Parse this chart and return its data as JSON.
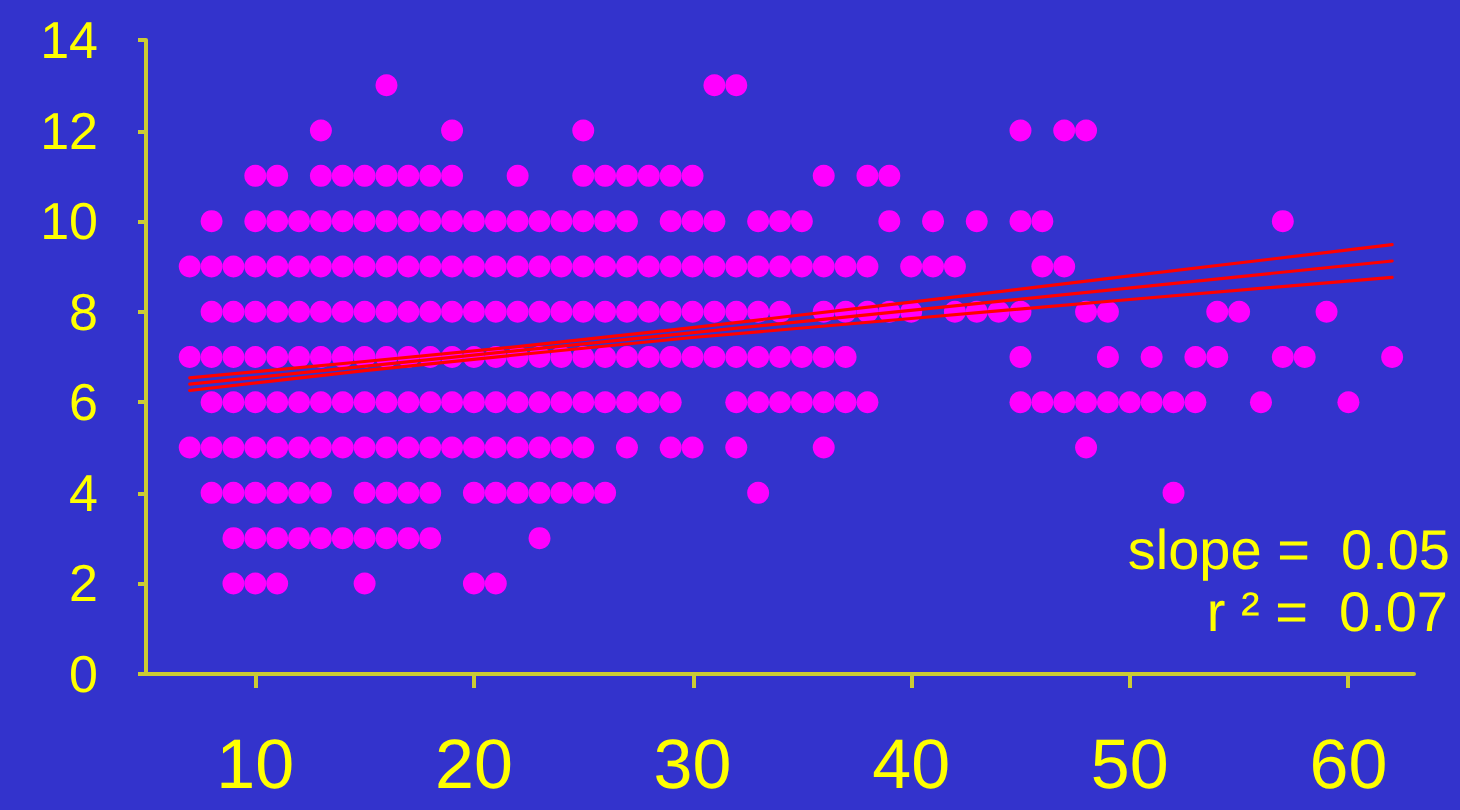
{
  "chart_data": {
    "type": "scatter",
    "xlim": [
      5,
      63
    ],
    "xticks": [
      10,
      20,
      30,
      40,
      50,
      60
    ],
    "ylim": [
      0,
      14
    ],
    "yticks": [
      0,
      2,
      4,
      6,
      8,
      10,
      12,
      14
    ],
    "marker": "circle",
    "annotations": [
      "slope =  0.05",
      "r ² =  0.07"
    ],
    "series": [
      {
        "color": "#ff00ff",
        "x": [
          16,
          31,
          32,
          13,
          19,
          25,
          45,
          47,
          48,
          10,
          11,
          13,
          14,
          15,
          16,
          17,
          18,
          19,
          22,
          25,
          26,
          27,
          28,
          29,
          30,
          36,
          38,
          39,
          8,
          10,
          11,
          12,
          13,
          14,
          15,
          16,
          17,
          18,
          19,
          20,
          21,
          22,
          23,
          24,
          25,
          26,
          27,
          29,
          30,
          31,
          33,
          34,
          35,
          39,
          41,
          43,
          45,
          46,
          57,
          7,
          8,
          9,
          10,
          11,
          12,
          13,
          14,
          15,
          16,
          17,
          18,
          19,
          20,
          21,
          22,
          23,
          24,
          25,
          26,
          27,
          28,
          29,
          30,
          31,
          32,
          33,
          34,
          35,
          36,
          37,
          38,
          40,
          41,
          42,
          46,
          47,
          8,
          9,
          10,
          11,
          12,
          13,
          14,
          15,
          16,
          17,
          18,
          19,
          20,
          21,
          22,
          23,
          24,
          25,
          26,
          27,
          28,
          29,
          30,
          31,
          32,
          33,
          34,
          36,
          37,
          38,
          39,
          40,
          42,
          43,
          44,
          45,
          48,
          49,
          54,
          55,
          59,
          7,
          8,
          9,
          10,
          11,
          12,
          13,
          14,
          15,
          16,
          17,
          18,
          19,
          20,
          21,
          22,
          23,
          24,
          25,
          26,
          27,
          28,
          29,
          30,
          31,
          32,
          33,
          34,
          35,
          36,
          37,
          45,
          49,
          51,
          53,
          54,
          57,
          58,
          62,
          8,
          9,
          10,
          11,
          12,
          13,
          14,
          15,
          16,
          17,
          18,
          19,
          20,
          21,
          22,
          23,
          24,
          25,
          26,
          27,
          28,
          29,
          32,
          33,
          34,
          35,
          36,
          37,
          38,
          45,
          46,
          47,
          48,
          49,
          50,
          51,
          52,
          53,
          56,
          60,
          7,
          8,
          9,
          10,
          11,
          12,
          13,
          14,
          15,
          16,
          17,
          18,
          19,
          20,
          21,
          22,
          23,
          24,
          25,
          27,
          29,
          30,
          32,
          36,
          48,
          8,
          9,
          10,
          11,
          12,
          13,
          15,
          16,
          17,
          18,
          20,
          21,
          22,
          23,
          24,
          25,
          26,
          33,
          52,
          9,
          10,
          11,
          12,
          13,
          14,
          15,
          16,
          17,
          18,
          23,
          9,
          10,
          11,
          15,
          20,
          21
        ],
        "values": [
          13,
          13,
          13,
          12,
          12,
          12,
          12,
          12,
          12,
          11,
          11,
          11,
          11,
          11,
          11,
          11,
          11,
          11,
          11,
          11,
          11,
          11,
          11,
          11,
          11,
          11,
          11,
          11,
          10,
          10,
          10,
          10,
          10,
          10,
          10,
          10,
          10,
          10,
          10,
          10,
          10,
          10,
          10,
          10,
          10,
          10,
          10,
          10,
          10,
          10,
          10,
          10,
          10,
          10,
          10,
          10,
          10,
          10,
          10,
          9,
          9,
          9,
          9,
          9,
          9,
          9,
          9,
          9,
          9,
          9,
          9,
          9,
          9,
          9,
          9,
          9,
          9,
          9,
          9,
          9,
          9,
          9,
          9,
          9,
          9,
          9,
          9,
          9,
          9,
          9,
          9,
          9,
          9,
          9,
          9,
          9,
          8,
          8,
          8,
          8,
          8,
          8,
          8,
          8,
          8,
          8,
          8,
          8,
          8,
          8,
          8,
          8,
          8,
          8,
          8,
          8,
          8,
          8,
          8,
          8,
          8,
          8,
          8,
          8,
          8,
          8,
          8,
          8,
          8,
          8,
          8,
          8,
          8,
          8,
          8,
          8,
          8,
          7,
          7,
          7,
          7,
          7,
          7,
          7,
          7,
          7,
          7,
          7,
          7,
          7,
          7,
          7,
          7,
          7,
          7,
          7,
          7,
          7,
          7,
          7,
          7,
          7,
          7,
          7,
          7,
          7,
          7,
          7,
          7,
          7,
          7,
          7,
          7,
          7,
          7,
          7,
          6,
          6,
          6,
          6,
          6,
          6,
          6,
          6,
          6,
          6,
          6,
          6,
          6,
          6,
          6,
          6,
          6,
          6,
          6,
          6,
          6,
          6,
          6,
          6,
          6,
          6,
          6,
          6,
          6,
          6,
          6,
          6,
          6,
          6,
          6,
          6,
          6,
          6,
          6,
          6,
          5,
          5,
          5,
          5,
          5,
          5,
          5,
          5,
          5,
          5,
          5,
          5,
          5,
          5,
          5,
          5,
          5,
          5,
          5,
          5,
          5,
          5,
          5,
          5,
          5,
          4,
          4,
          4,
          4,
          4,
          4,
          4,
          4,
          4,
          4,
          4,
          4,
          4,
          4,
          4,
          4,
          4,
          4,
          4,
          3,
          3,
          3,
          3,
          3,
          3,
          3,
          3,
          3,
          3,
          3,
          2,
          2,
          2,
          2,
          2,
          2
        ]
      },
      {
        "type": "line",
        "color": "#ff0000",
        "marker": "none",
        "x": [
          7,
          62
        ],
        "values": [
          6.4,
          9.12
        ]
      },
      {
        "type": "line",
        "color": "#ff0000",
        "marker": "none",
        "x": [
          7,
          15,
          22,
          30,
          40,
          50,
          62
        ],
        "values": [
          6.54,
          6.9,
          7.23,
          7.65,
          8.21,
          8.79,
          9.48
        ]
      },
      {
        "type": "line",
        "color": "#ff0000",
        "marker": "none",
        "x": [
          7,
          15,
          22,
          30,
          40,
          50,
          62
        ],
        "values": [
          6.26,
          6.7,
          7.05,
          7.43,
          7.85,
          8.27,
          8.76
        ]
      }
    ]
  }
}
